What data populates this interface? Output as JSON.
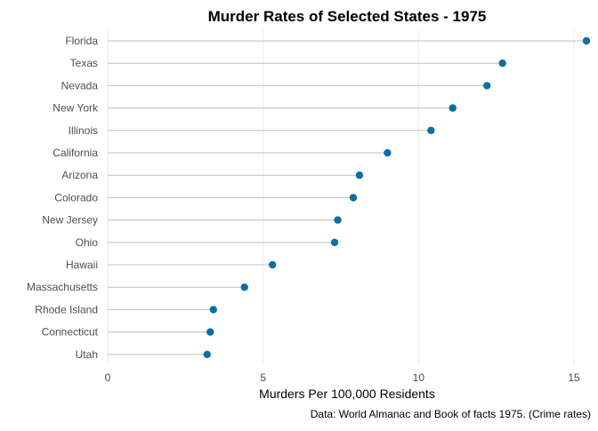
{
  "chart_data": {
    "type": "lollipop",
    "title": "Murder Rates of Selected States - 1975",
    "xlabel": "Murders Per 100,000 Residents",
    "ylabel": "",
    "caption": "Data: World Almanac and Book of facts 1975. (Crime rates)",
    "xlim": [
      0,
      15.4
    ],
    "x_ticks": [
      "0",
      "5",
      "10",
      "15"
    ],
    "x_tick_values": [
      0,
      5,
      10,
      15
    ],
    "grid": "vertical",
    "colors": {
      "point": "#0b6fa4",
      "stem": "#bfbfbf",
      "grid": "#ebebeb"
    },
    "categories": [
      "Florida",
      "Texas",
      "Nevada",
      "New York",
      "Illinois",
      "California",
      "Arizona",
      "Colorado",
      "New Jersey",
      "Ohio",
      "Hawaii",
      "Massachusetts",
      "Rhode Island",
      "Connecticut",
      "Utah"
    ],
    "values": [
      15.4,
      12.7,
      12.2,
      11.1,
      10.4,
      9.0,
      8.1,
      7.9,
      7.4,
      7.3,
      5.3,
      4.4,
      3.4,
      3.3,
      3.2
    ]
  }
}
